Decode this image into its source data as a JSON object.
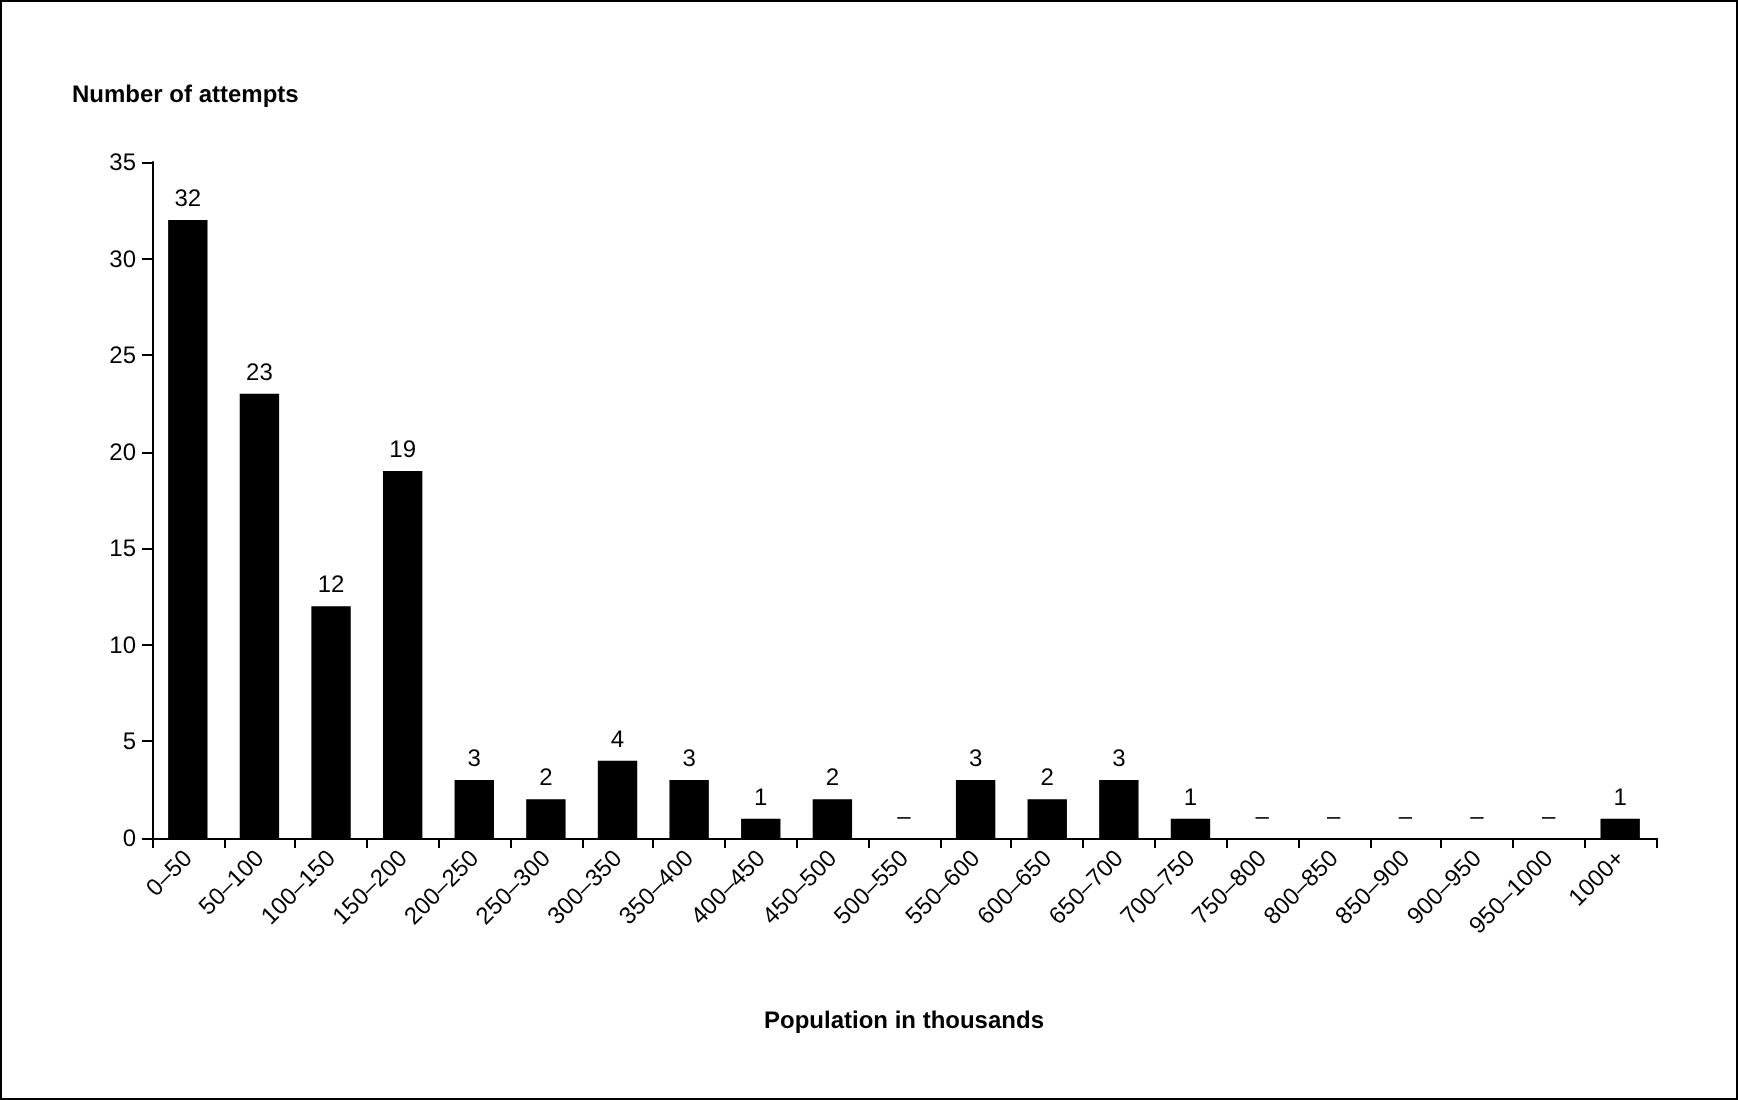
{
  "chart_data": {
    "type": "bar",
    "ylabel": "Number of attempts",
    "xlabel": "Population in thousands",
    "categories": [
      "0–50",
      "50–100",
      "100–150",
      "150–200",
      "200–250",
      "250–300",
      "300–350",
      "350–400",
      "400–450",
      "450–500",
      "500–550",
      "550–600",
      "600–650",
      "650–700",
      "700–750",
      "750–800",
      "800–850",
      "850–900",
      "900–950",
      "950–1000",
      "1000+"
    ],
    "values": [
      32,
      23,
      12,
      19,
      3,
      2,
      4,
      3,
      1,
      2,
      0,
      3,
      2,
      3,
      1,
      0,
      0,
      0,
      0,
      0,
      1
    ],
    "value_labels": [
      "32",
      "23",
      "12",
      "19",
      "3",
      "2",
      "4",
      "3",
      "1",
      "2",
      "–",
      "3",
      "2",
      "3",
      "1",
      "–",
      "–",
      "–",
      "–",
      "–",
      "1"
    ],
    "color": "#000000",
    "ylim": [
      0,
      35
    ],
    "yticks": [
      0,
      5,
      10,
      15,
      20,
      25,
      30,
      35
    ],
    "grid": false
  }
}
